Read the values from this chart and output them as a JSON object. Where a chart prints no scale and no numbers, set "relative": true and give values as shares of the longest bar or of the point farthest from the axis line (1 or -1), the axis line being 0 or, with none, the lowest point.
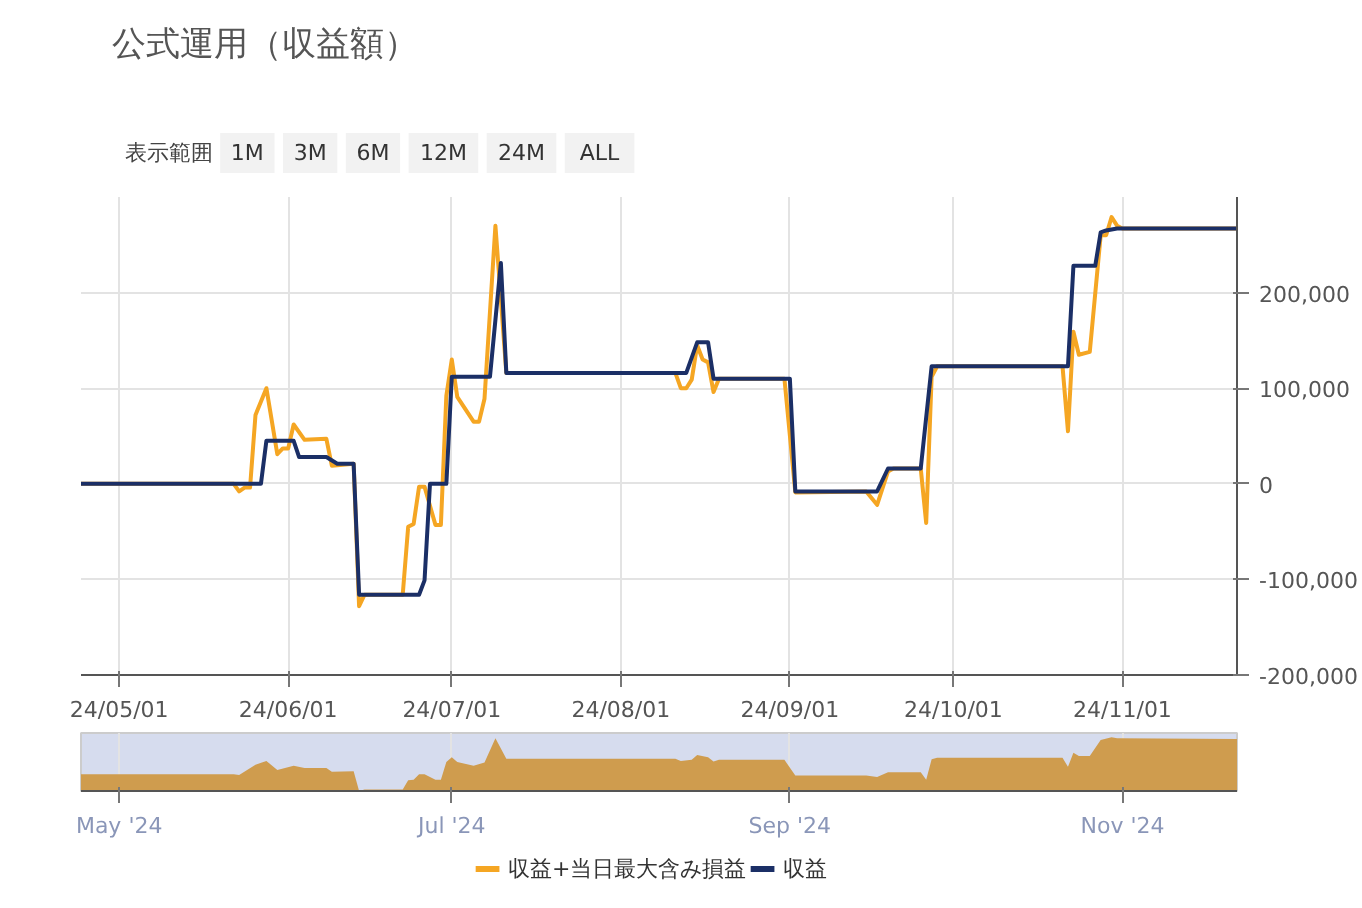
{
  "chart_data": [
    {
      "type": "line",
      "title": "公式運用（収益額）",
      "annotations": [
        "表示範囲",
        "1M",
        "3M",
        "6M",
        "12M",
        "24M",
        "ALL"
      ],
      "xlim": [
        "2024-04-24",
        "2024-11-22"
      ],
      "xticks": [
        {
          "value": "2024-05-01",
          "label": "24/05/01"
        },
        {
          "value": "2024-06-01",
          "label": "24/06/01"
        },
        {
          "value": "2024-07-01",
          "label": "24/07/01"
        },
        {
          "value": "2024-08-01",
          "label": "24/08/01"
        },
        {
          "value": "2024-09-01",
          "label": "24/09/01"
        },
        {
          "value": "2024-10-01",
          "label": "24/10/01"
        },
        {
          "value": "2024-11-01",
          "label": "24/11/01"
        }
      ],
      "ylim": [
        -200000,
        300000
      ],
      "yticks": [
        {
          "value": -200000,
          "label": "-200,000"
        },
        {
          "value": -100000,
          "label": "-100,000"
        },
        0,
        {
          "value": 100000,
          "label": "100,000"
        },
        {
          "value": 200000,
          "label": "200,000"
        }
      ],
      "grid": true,
      "legend": "bottom",
      "series": [
        {
          "name": "収益+当日最大含み損益",
          "color": "#f5a623",
          "x": [
            "2024-04-24",
            "2024-05-22",
            "2024-05-23",
            "2024-05-24",
            "2024-05-25",
            "2024-05-26",
            "2024-05-28",
            "2024-05-30",
            "2024-05-31",
            "2024-06-01",
            "2024-06-02",
            "2024-06-04",
            "2024-06-08",
            "2024-06-09",
            "2024-06-13",
            "2024-06-14",
            "2024-06-15",
            "2024-06-22",
            "2024-06-23",
            "2024-06-24",
            "2024-06-25",
            "2024-06-26",
            "2024-06-28",
            "2024-06-29",
            "2024-06-30",
            "2024-07-01",
            "2024-07-02",
            "2024-07-05",
            "2024-07-06",
            "2024-07-07",
            "2024-07-09",
            "2024-07-11",
            "2024-08-11",
            "2024-08-12",
            "2024-08-13",
            "2024-08-14",
            "2024-08-15",
            "2024-08-16",
            "2024-08-17",
            "2024-08-18",
            "2024-08-19",
            "2024-08-31",
            "2024-09-02",
            "2024-09-15",
            "2024-09-17",
            "2024-09-19",
            "2024-09-20",
            "2024-09-25",
            "2024-09-26",
            "2024-09-27",
            "2024-09-28",
            "2024-10-21",
            "2024-10-22",
            "2024-10-23",
            "2024-10-24",
            "2024-10-26",
            "2024-10-28",
            "2024-10-29",
            "2024-10-30",
            "2024-10-31",
            "2024-11-01",
            "2024-11-22"
          ],
          "values": [
            0,
            0,
            -8000,
            -4000,
            -4000,
            72000,
            100000,
            31000,
            37000,
            37000,
            62000,
            46000,
            47000,
            19000,
            21000,
            -128000,
            -116000,
            -116000,
            -45000,
            -42000,
            -3000,
            -3000,
            -43000,
            -43000,
            92000,
            130000,
            91000,
            65000,
            65000,
            89000,
            270000,
            116000,
            116000,
            100000,
            100000,
            109000,
            145000,
            130000,
            127000,
            96000,
            110000,
            110000,
            -9000,
            -8000,
            -22000,
            13000,
            16000,
            16000,
            -41000,
            112000,
            123000,
            123000,
            55000,
            159000,
            135000,
            138000,
            260000,
            260000,
            279000,
            270000,
            267000,
            267000
          ]
        },
        {
          "name": "収益",
          "color": "#1b2f66",
          "x": [
            "2024-04-24",
            "2024-05-27",
            "2024-05-28",
            "2024-06-02",
            "2024-06-03",
            "2024-06-08",
            "2024-06-10",
            "2024-06-13",
            "2024-06-14",
            "2024-06-25",
            "2024-06-26",
            "2024-06-27",
            "2024-06-30",
            "2024-07-01",
            "2024-07-08",
            "2024-07-10",
            "2024-07-11",
            "2024-08-13",
            "2024-08-15",
            "2024-08-17",
            "2024-08-18",
            "2024-09-01",
            "2024-09-02",
            "2024-09-17",
            "2024-09-19",
            "2024-09-25",
            "2024-09-27",
            "2024-10-22",
            "2024-10-23",
            "2024-10-27",
            "2024-10-28",
            "2024-10-29",
            "2024-10-31",
            "2024-11-22"
          ],
          "values": [
            0,
            0,
            45000,
            45000,
            28000,
            28000,
            21000,
            21000,
            -116000,
            -116000,
            -101000,
            0,
            0,
            112000,
            112000,
            231000,
            116000,
            116000,
            148000,
            148000,
            110000,
            110000,
            -8000,
            -8000,
            16000,
            16000,
            123000,
            123000,
            228000,
            228000,
            263000,
            265000,
            267000,
            267000
          ]
        }
      ]
    },
    {
      "type": "area",
      "relative": true,
      "tick_labels": "x",
      "xlim": [
        "2024-04-24",
        "2024-11-22"
      ],
      "xticks": [
        {
          "value": "2024-05-01",
          "label": "May '24"
        },
        {
          "value": "2024-07-01",
          "label": "Jul '24"
        },
        {
          "value": "2024-09-01",
          "label": "Sep '24"
        },
        {
          "value": "2024-11-01",
          "label": "Nov '24"
        }
      ],
      "grid": "x",
      "series": [
        {
          "color": "#cf9c4e",
          "x": [
            "2024-04-24",
            "2024-05-22",
            "2024-05-23",
            "2024-05-26",
            "2024-05-28",
            "2024-05-30",
            "2024-06-02",
            "2024-06-04",
            "2024-06-08",
            "2024-06-09",
            "2024-06-13",
            "2024-06-14",
            "2024-06-15",
            "2024-06-22",
            "2024-06-23",
            "2024-06-24",
            "2024-06-25",
            "2024-06-26",
            "2024-06-28",
            "2024-06-29",
            "2024-06-30",
            "2024-07-01",
            "2024-07-02",
            "2024-07-05",
            "2024-07-07",
            "2024-07-09",
            "2024-07-11",
            "2024-08-11",
            "2024-08-12",
            "2024-08-14",
            "2024-08-15",
            "2024-08-17",
            "2024-08-18",
            "2024-08-19",
            "2024-08-31",
            "2024-09-02",
            "2024-09-15",
            "2024-09-17",
            "2024-09-19",
            "2024-09-25",
            "2024-09-26",
            "2024-09-27",
            "2024-09-28",
            "2024-10-21",
            "2024-10-22",
            "2024-10-23",
            "2024-10-24",
            "2024-10-26",
            "2024-10-28",
            "2024-10-30",
            "2024-10-31",
            "2024-11-22"
          ],
          "values": [
            0.31,
            0.31,
            0.3,
            0.49,
            0.56,
            0.39,
            0.47,
            0.43,
            0.43,
            0.36,
            0.37,
            0,
            0.03,
            0.03,
            0.2,
            0.21,
            0.31,
            0.31,
            0.21,
            0.21,
            0.54,
            0.63,
            0.54,
            0.47,
            0.53,
            0.98,
            0.6,
            0.6,
            0.56,
            0.58,
            0.67,
            0.63,
            0.55,
            0.58,
            0.58,
            0.29,
            0.29,
            0.26,
            0.35,
            0.35,
            0.21,
            0.59,
            0.62,
            0.62,
            0.45,
            0.71,
            0.65,
            0.65,
            0.95,
            1,
            0.98,
            0.97
          ]
        }
      ]
    }
  ]
}
